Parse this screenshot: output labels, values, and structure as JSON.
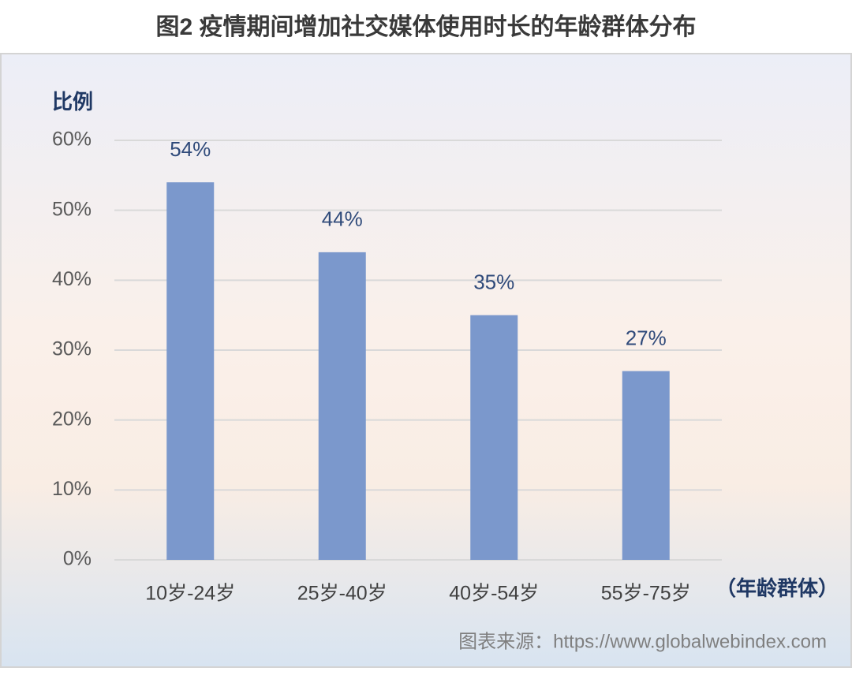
{
  "chart_data": {
    "type": "bar",
    "title": "图2 疫情期间增加社交媒体使用时长的年龄群体分布",
    "y_label": "比例",
    "x_label": "（年龄群体）",
    "source": "图表来源：https://www.globalwebindex.com",
    "categories": [
      "10岁-24岁",
      "25岁-40岁",
      "40岁-54岁",
      "55岁-75岁"
    ],
    "values": [
      54,
      44,
      35,
      27
    ],
    "value_labels": [
      "54%",
      "44%",
      "35%",
      "27%"
    ],
    "color": "#7b98cc",
    "ylim": [
      0,
      60
    ],
    "yticks": [
      {
        "value": 0,
        "label": "0%"
      },
      {
        "value": 10,
        "label": "10%"
      },
      {
        "value": 20,
        "label": "20%"
      },
      {
        "value": 30,
        "label": "30%"
      },
      {
        "value": 40,
        "label": "40%"
      },
      {
        "value": 50,
        "label": "50%"
      },
      {
        "value": 60,
        "label": "60%"
      }
    ],
    "grid": true
  }
}
